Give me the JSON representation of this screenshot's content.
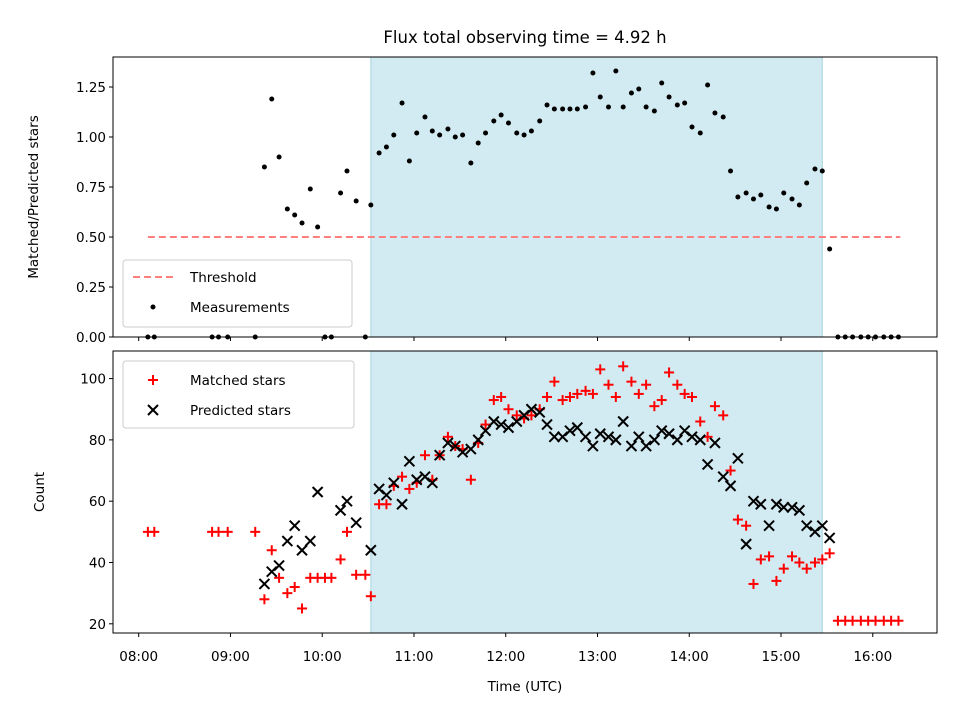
{
  "chart_data": [
    {
      "type": "scatter",
      "title": "Flux total observing time = 4.92 h",
      "xlabel": "",
      "ylabel": "Matched/Predicted stars",
      "xlim": [
        7.72,
        16.7
      ],
      "ylim": [
        0,
        1.4
      ],
      "yticks": [
        0,
        0.25,
        0.5,
        0.75,
        1.0,
        1.25
      ],
      "ytick_labels": [
        "0.00",
        "0.25",
        "0.50",
        "0.75",
        "1.00",
        "1.25"
      ],
      "shaded_region": {
        "x_start": 10.53,
        "x_end": 15.45,
        "color": "#add8e6"
      },
      "threshold": {
        "value": 0.5,
        "x_start": 8.1,
        "x_end": 16.3,
        "color": "#ff7f7f"
      },
      "legend": [
        "Threshold",
        "Measurements"
      ],
      "legend_position": "lower-left",
      "series": [
        {
          "name": "Measurements",
          "color": "#000000",
          "x": [
            8.1,
            8.17,
            8.8,
            8.87,
            8.97,
            9.27,
            9.37,
            9.45,
            9.53,
            9.62,
            9.7,
            9.78,
            9.87,
            9.95,
            10.03,
            10.1,
            10.2,
            10.27,
            10.37,
            10.47,
            10.53,
            10.62,
            10.7,
            10.78,
            10.87,
            10.95,
            11.03,
            11.12,
            11.2,
            11.28,
            11.37,
            11.45,
            11.53,
            11.62,
            11.7,
            11.78,
            11.87,
            11.95,
            12.03,
            12.12,
            12.2,
            12.28,
            12.37,
            12.45,
            12.53,
            12.62,
            12.7,
            12.78,
            12.87,
            12.95,
            13.03,
            13.12,
            13.2,
            13.28,
            13.37,
            13.45,
            13.53,
            13.62,
            13.7,
            13.78,
            13.87,
            13.95,
            14.03,
            14.12,
            14.2,
            14.28,
            14.37,
            14.45,
            14.53,
            14.62,
            14.7,
            14.78,
            14.87,
            14.95,
            15.03,
            15.12,
            15.2,
            15.28,
            15.37,
            15.45,
            15.53,
            15.62,
            15.7,
            15.78,
            15.87,
            15.95,
            16.03,
            16.12,
            16.2,
            16.28
          ],
          "y": [
            0,
            0,
            0,
            0,
            0,
            0,
            0.85,
            1.19,
            0.9,
            0.64,
            0.61,
            0.57,
            0.74,
            0.55,
            0,
            0,
            0.72,
            0.83,
            0.68,
            0,
            0.66,
            0.92,
            0.95,
            1.01,
            1.17,
            0.88,
            1.02,
            1.1,
            1.03,
            1.01,
            1.04,
            1.0,
            1.01,
            0.87,
            0.97,
            1.02,
            1.08,
            1.11,
            1.07,
            1.02,
            1.01,
            1.03,
            1.08,
            1.16,
            1.14,
            1.14,
            1.14,
            1.14,
            1.15,
            1.32,
            1.2,
            1.15,
            1.33,
            1.15,
            1.22,
            1.24,
            1.15,
            1.13,
            1.27,
            1.2,
            1.16,
            1.17,
            1.05,
            1.02,
            1.26,
            1.12,
            1.1,
            0.83,
            0.7,
            0.72,
            0.69,
            0.71,
            0.65,
            0.64,
            0.72,
            0.69,
            0.66,
            0.77,
            0.84,
            0.83,
            0.44,
            0,
            0,
            0,
            0,
            0,
            0,
            0,
            0,
            0
          ]
        }
      ]
    },
    {
      "type": "scatter",
      "title": "",
      "xlabel": "Time (UTC)",
      "ylabel": "Count",
      "xlim": [
        7.72,
        16.7
      ],
      "ylim": [
        17,
        109
      ],
      "yticks": [
        20,
        40,
        60,
        80,
        100
      ],
      "ytick_labels": [
        "20",
        "40",
        "60",
        "80",
        "100"
      ],
      "xticks": [
        8,
        9,
        10,
        11,
        12,
        13,
        14,
        15,
        16
      ],
      "xtick_labels": [
        "08:00",
        "09:00",
        "10:00",
        "11:00",
        "12:00",
        "13:00",
        "14:00",
        "15:00",
        "16:00"
      ],
      "shaded_region": {
        "x_start": 10.53,
        "x_end": 15.45,
        "color": "#add8e6"
      },
      "legend": [
        "Matched stars",
        "Predicted stars"
      ],
      "legend_position": "top-left",
      "series": [
        {
          "name": "Matched stars",
          "marker": "plus",
          "color": "#ff0000",
          "x": [
            8.1,
            8.17,
            8.8,
            8.87,
            8.97,
            9.27,
            9.37,
            9.45,
            9.53,
            9.62,
            9.7,
            9.78,
            9.87,
            9.95,
            10.03,
            10.1,
            10.2,
            10.27,
            10.37,
            10.47,
            10.53,
            10.62,
            10.7,
            10.78,
            10.87,
            10.95,
            11.03,
            11.12,
            11.2,
            11.28,
            11.37,
            11.45,
            11.53,
            11.62,
            11.7,
            11.78,
            11.87,
            11.95,
            12.03,
            12.12,
            12.2,
            12.28,
            12.37,
            12.45,
            12.53,
            12.62,
            12.7,
            12.78,
            12.87,
            12.95,
            13.03,
            13.12,
            13.2,
            13.28,
            13.37,
            13.45,
            13.53,
            13.62,
            13.7,
            13.78,
            13.87,
            13.95,
            14.03,
            14.12,
            14.2,
            14.28,
            14.37,
            14.45,
            14.53,
            14.62,
            14.7,
            14.78,
            14.87,
            14.95,
            15.03,
            15.12,
            15.2,
            15.28,
            15.37,
            15.45,
            15.53,
            15.62,
            15.7,
            15.78,
            15.87,
            15.95,
            16.03,
            16.12,
            16.2,
            16.28
          ],
          "y": [
            50,
            50,
            50,
            50,
            50,
            50,
            28,
            44,
            35,
            30,
            32,
            25,
            35,
            35,
            35,
            35,
            41,
            50,
            36,
            36,
            29,
            59,
            59,
            65,
            68,
            64,
            66,
            75,
            67,
            75,
            81,
            78,
            77,
            67,
            79,
            85,
            93,
            94,
            90,
            88,
            87,
            88,
            90,
            94,
            99,
            93,
            94,
            95,
            96,
            95,
            103,
            98,
            94,
            104,
            99,
            95,
            98,
            91,
            93,
            102,
            98,
            95,
            94,
            86,
            81,
            91,
            88,
            70,
            54,
            52,
            33,
            41,
            42,
            34,
            38,
            42,
            40,
            38,
            40,
            41,
            43,
            21,
            21,
            21,
            21,
            21,
            21,
            21,
            21,
            21
          ]
        },
        {
          "name": "Predicted stars",
          "marker": "x",
          "color": "#000000",
          "x": [
            9.37,
            9.45,
            9.53,
            9.62,
            9.7,
            9.78,
            9.87,
            9.95,
            10.2,
            10.27,
            10.37,
            10.53,
            10.62,
            10.7,
            10.78,
            10.87,
            10.95,
            11.03,
            11.12,
            11.2,
            11.28,
            11.37,
            11.45,
            11.53,
            11.62,
            11.7,
            11.78,
            11.87,
            11.95,
            12.03,
            12.12,
            12.2,
            12.28,
            12.37,
            12.45,
            12.53,
            12.62,
            12.7,
            12.78,
            12.87,
            12.95,
            13.03,
            13.12,
            13.2,
            13.28,
            13.37,
            13.45,
            13.53,
            13.62,
            13.7,
            13.78,
            13.87,
            13.95,
            14.03,
            14.12,
            14.2,
            14.28,
            14.37,
            14.45,
            14.53,
            14.62,
            14.7,
            14.78,
            14.87,
            14.95,
            15.03,
            15.12,
            15.2,
            15.28,
            15.37,
            15.45,
            15.53
          ],
          "y": [
            33,
            37,
            39,
            47,
            52,
            44,
            47,
            63,
            57,
            60,
            53,
            44,
            64,
            62,
            66,
            59,
            73,
            67,
            68,
            66,
            75,
            79,
            78,
            76,
            77,
            80,
            83,
            86,
            85,
            84,
            86,
            88,
            90,
            89,
            85,
            81,
            81,
            83,
            84,
            81,
            78,
            82,
            81,
            80,
            86,
            78,
            81,
            78,
            80,
            83,
            82,
            80,
            83,
            81,
            80,
            72,
            79,
            68,
            65,
            74,
            46,
            60,
            59,
            52,
            59,
            58,
            58,
            57,
            52,
            50,
            52,
            48
          ]
        }
      ]
    }
  ]
}
